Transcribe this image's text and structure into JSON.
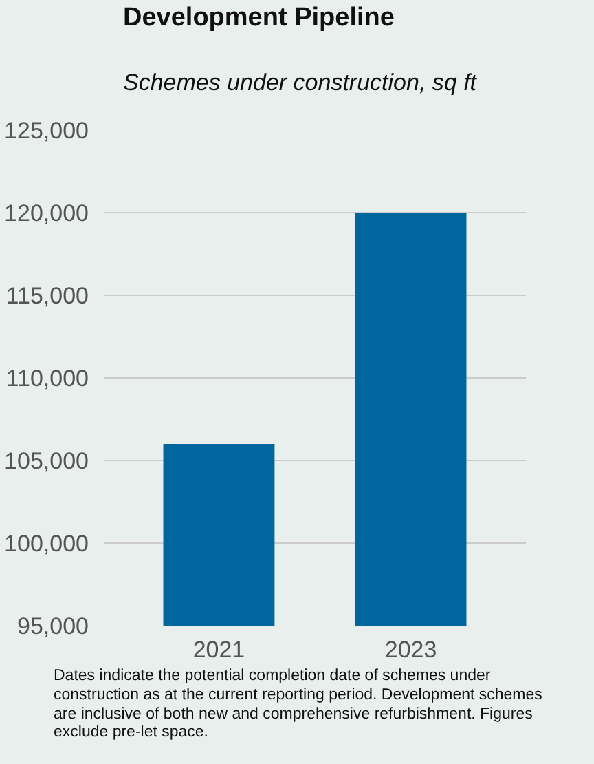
{
  "chart_data": {
    "type": "bar",
    "title": "Development Pipeline",
    "subtitle": "Schemes under construction, sq ft",
    "categories": [
      "2021",
      "2023"
    ],
    "values": [
      106000,
      120000
    ],
    "color": "#00679e",
    "ylim": [
      95000,
      125000
    ],
    "yticks": [
      {
        "value": 95000,
        "label": "95,000"
      },
      {
        "value": 100000,
        "label": "100,000"
      },
      {
        "value": 105000,
        "label": "105,000"
      },
      {
        "value": 110000,
        "label": "110,000"
      },
      {
        "value": 115000,
        "label": "115,000"
      },
      {
        "value": 120000,
        "label": "120,000"
      },
      {
        "value": 125000,
        "label": "125,000"
      }
    ],
    "grid": "y",
    "annotations": [
      "Dates indicate the potential completion date of schemes under construction as at the current reporting period. Development schemes are inclusive of both new and comprehensive refurbishment. Figures exclude pre-let space."
    ]
  }
}
